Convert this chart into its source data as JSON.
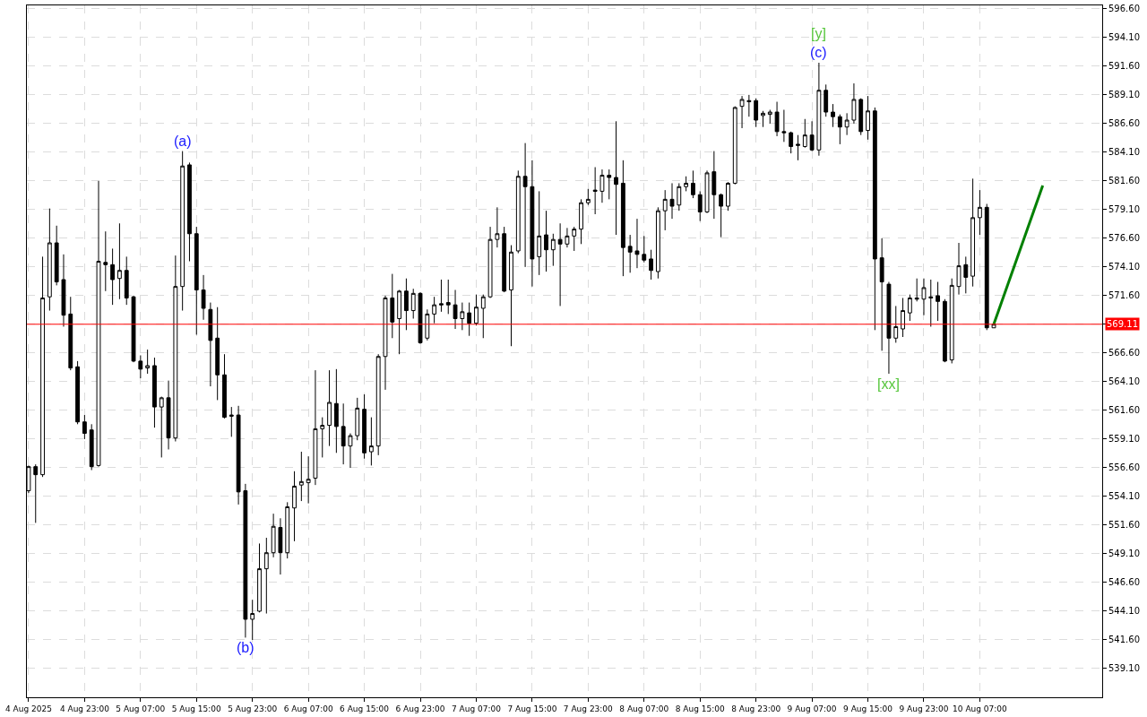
{
  "chart_data": {
    "type": "candlestick",
    "color": "#000000",
    "x": [
      "2025-08-04T15:00",
      "2025-08-04T16:00",
      "2025-08-04T17:00",
      "2025-08-04T18:00",
      "2025-08-04T19:00",
      "2025-08-04T20:00",
      "2025-08-04T21:00",
      "2025-08-04T22:00",
      "2025-08-04T23:00",
      "2025-08-05T00:00",
      "2025-08-05T01:00",
      "2025-08-05T02:00",
      "2025-08-05T03:00",
      "2025-08-05T04:00",
      "2025-08-05T05:00",
      "2025-08-05T06:00",
      "2025-08-05T07:00",
      "2025-08-05T08:00",
      "2025-08-05T09:00",
      "2025-08-05T10:00",
      "2025-08-05T11:00",
      "2025-08-05T12:00",
      "2025-08-05T13:00",
      "2025-08-05T14:00",
      "2025-08-05T15:00",
      "2025-08-05T16:00",
      "2025-08-05T17:00",
      "2025-08-05T18:00",
      "2025-08-05T19:00",
      "2025-08-05T20:00",
      "2025-08-05T21:00",
      "2025-08-05T22:00",
      "2025-08-05T23:00",
      "2025-08-06T00:00",
      "2025-08-06T01:00",
      "2025-08-06T02:00",
      "2025-08-06T03:00",
      "2025-08-06T04:00",
      "2025-08-06T05:00",
      "2025-08-06T06:00",
      "2025-08-06T07:00",
      "2025-08-06T08:00",
      "2025-08-06T09:00",
      "2025-08-06T10:00",
      "2025-08-06T11:00",
      "2025-08-06T12:00",
      "2025-08-06T13:00",
      "2025-08-06T14:00",
      "2025-08-06T15:00",
      "2025-08-06T16:00",
      "2025-08-06T17:00",
      "2025-08-06T18:00",
      "2025-08-06T19:00",
      "2025-08-06T20:00",
      "2025-08-06T21:00",
      "2025-08-06T22:00",
      "2025-08-06T23:00",
      "2025-08-07T00:00",
      "2025-08-07T01:00",
      "2025-08-07T02:00",
      "2025-08-07T03:00",
      "2025-08-07T04:00",
      "2025-08-07T05:00",
      "2025-08-07T06:00",
      "2025-08-07T07:00",
      "2025-08-07T08:00",
      "2025-08-07T09:00",
      "2025-08-07T10:00",
      "2025-08-07T11:00",
      "2025-08-07T12:00",
      "2025-08-07T13:00",
      "2025-08-07T14:00",
      "2025-08-07T15:00",
      "2025-08-07T16:00",
      "2025-08-07T17:00",
      "2025-08-07T18:00",
      "2025-08-07T19:00",
      "2025-08-07T20:00",
      "2025-08-07T21:00",
      "2025-08-07T22:00",
      "2025-08-07T23:00",
      "2025-08-08T00:00",
      "2025-08-08T01:00",
      "2025-08-08T02:00",
      "2025-08-08T03:00",
      "2025-08-08T04:00",
      "2025-08-08T05:00",
      "2025-08-08T06:00",
      "2025-08-08T07:00",
      "2025-08-08T08:00",
      "2025-08-08T09:00",
      "2025-08-08T10:00",
      "2025-08-08T11:00",
      "2025-08-08T12:00",
      "2025-08-08T13:00",
      "2025-08-08T14:00",
      "2025-08-08T15:00",
      "2025-08-08T16:00",
      "2025-08-08T17:00",
      "2025-08-08T18:00",
      "2025-08-08T19:00",
      "2025-08-08T20:00",
      "2025-08-08T21:00",
      "2025-08-08T22:00",
      "2025-08-08T23:00",
      "2025-08-09T00:00",
      "2025-08-09T01:00",
      "2025-08-09T02:00",
      "2025-08-09T03:00",
      "2025-08-09T04:00",
      "2025-08-09T05:00",
      "2025-08-09T06:00",
      "2025-08-09T07:00",
      "2025-08-09T08:00",
      "2025-08-09T09:00",
      "2025-08-09T10:00",
      "2025-08-09T11:00",
      "2025-08-09T12:00",
      "2025-08-09T13:00",
      "2025-08-09T14:00",
      "2025-08-09T15:00",
      "2025-08-09T16:00",
      "2025-08-09T17:00",
      "2025-08-09T18:00",
      "2025-08-09T19:00",
      "2025-08-09T20:00",
      "2025-08-09T21:00",
      "2025-08-09T22:00",
      "2025-08-09T23:00",
      "2025-08-10T00:00",
      "2025-08-10T01:00",
      "2025-08-10T02:00",
      "2025-08-10T03:00",
      "2025-08-10T04:00",
      "2025-08-10T05:00",
      "2025-08-10T06:00",
      "2025-08-10T07:00",
      "2025-08-10T08:00",
      "2025-08-10T09:00"
    ],
    "ohlc": [
      [
        554.6,
        556.8,
        554.4,
        556.7
      ],
      [
        556.7,
        556.9,
        551.8,
        556.0
      ],
      [
        556.0,
        575.0,
        555.8,
        571.4
      ],
      [
        571.5,
        579.2,
        570.3,
        576.2
      ],
      [
        576.2,
        577.7,
        572.5,
        572.8
      ],
      [
        573.0,
        575.2,
        568.9,
        569.9
      ],
      [
        570.0,
        571.5,
        565.1,
        565.3
      ],
      [
        565.4,
        565.9,
        560.4,
        560.6
      ],
      [
        560.6,
        561.2,
        559.1,
        559.6
      ],
      [
        559.9,
        560.4,
        556.4,
        556.7
      ],
      [
        556.8,
        581.6,
        556.7,
        574.6
      ],
      [
        574.5,
        577.2,
        572.0,
        574.3
      ],
      [
        574.3,
        575.7,
        570.8,
        573.0
      ],
      [
        573.1,
        577.9,
        571.3,
        573.8
      ],
      [
        573.8,
        575.0,
        570.8,
        571.4
      ],
      [
        571.5,
        571.6,
        565.8,
        565.9
      ],
      [
        565.9,
        566.4,
        564.4,
        565.2
      ],
      [
        565.3,
        566.9,
        564.8,
        565.5
      ],
      [
        565.5,
        566.2,
        560.1,
        561.9
      ],
      [
        561.9,
        562.8,
        557.5,
        562.7
      ],
      [
        562.7,
        564.2,
        558.2,
        559.2
      ],
      [
        559.2,
        575.1,
        558.9,
        572.4
      ],
      [
        572.4,
        584.2,
        570.3,
        582.9
      ],
      [
        583.0,
        583.2,
        574.6,
        577.0
      ],
      [
        577.0,
        577.6,
        568.2,
        572.1
      ],
      [
        572.1,
        573.4,
        569.5,
        570.5
      ],
      [
        570.4,
        571.0,
        563.7,
        567.7
      ],
      [
        567.9,
        570.6,
        562.5,
        564.7
      ],
      [
        564.7,
        566.5,
        560.9,
        561.0
      ],
      [
        561.2,
        561.9,
        559.3,
        561.1
      ],
      [
        561.2,
        562.0,
        553.4,
        554.5
      ],
      [
        554.6,
        555.2,
        541.8,
        543.4
      ],
      [
        543.4,
        545.1,
        541.6,
        543.9
      ],
      [
        544.1,
        550.0,
        544.0,
        547.8
      ],
      [
        547.8,
        550.5,
        543.9,
        549.2
      ],
      [
        549.2,
        552.6,
        548.8,
        551.5
      ],
      [
        551.4,
        552.2,
        547.3,
        549.2
      ],
      [
        549.2,
        553.6,
        548.7,
        553.2
      ],
      [
        553.1,
        556.3,
        550.2,
        555.0
      ],
      [
        555.1,
        558.0,
        553.7,
        555.4
      ],
      [
        555.3,
        557.6,
        553.5,
        555.6
      ],
      [
        555.7,
        565.1,
        555.1,
        560.0
      ],
      [
        560.0,
        561.0,
        557.5,
        560.3
      ],
      [
        560.3,
        565.1,
        558.5,
        562.3
      ],
      [
        562.2,
        565.2,
        557.9,
        560.2
      ],
      [
        560.2,
        562.2,
        556.9,
        558.5
      ],
      [
        558.5,
        559.6,
        556.6,
        559.4
      ],
      [
        559.4,
        562.7,
        559.0,
        561.8
      ],
      [
        561.7,
        563.0,
        557.4,
        557.9
      ],
      [
        558.0,
        561.0,
        556.8,
        558.5
      ],
      [
        558.5,
        566.5,
        557.7,
        566.3
      ],
      [
        566.3,
        571.6,
        563.4,
        571.4
      ],
      [
        571.4,
        573.5,
        567.9,
        569.3
      ],
      [
        569.6,
        572.1,
        566.5,
        572.0
      ],
      [
        572.0,
        573.1,
        568.6,
        570.3
      ],
      [
        570.3,
        572.2,
        569.6,
        571.8
      ],
      [
        571.8,
        571.9,
        567.4,
        567.5
      ],
      [
        567.9,
        570.4,
        567.7,
        570.0
      ],
      [
        570.0,
        571.5,
        569.2,
        570.8
      ],
      [
        570.9,
        573.0,
        570.2,
        570.8
      ],
      [
        571.0,
        573.0,
        570.0,
        570.8
      ],
      [
        570.8,
        572.1,
        568.7,
        569.6
      ],
      [
        569.6,
        571.0,
        568.6,
        570.2
      ],
      [
        570.1,
        571.0,
        568.1,
        569.2
      ],
      [
        569.2,
        571.7,
        569.0,
        570.6
      ],
      [
        570.5,
        571.7,
        567.9,
        571.5
      ],
      [
        571.5,
        577.6,
        571.4,
        576.5
      ],
      [
        576.5,
        579.3,
        575.8,
        577.0
      ],
      [
        577.0,
        577.6,
        571.9,
        572.0
      ],
      [
        572.1,
        576.0,
        567.2,
        575.4
      ],
      [
        575.5,
        582.5,
        575.3,
        582.0
      ],
      [
        582.0,
        584.9,
        574.1,
        581.1
      ],
      [
        581.1,
        583.4,
        572.4,
        574.8
      ],
      [
        575.0,
        580.7,
        573.4,
        576.8
      ],
      [
        576.9,
        579.0,
        573.7,
        575.6
      ],
      [
        575.6,
        577.0,
        574.2,
        576.5
      ],
      [
        576.5,
        577.9,
        570.7,
        576.1
      ],
      [
        576.1,
        577.5,
        575.8,
        576.8
      ],
      [
        576.8,
        577.6,
        575.5,
        577.4
      ],
      [
        577.4,
        580.0,
        576.1,
        579.7
      ],
      [
        579.7,
        580.9,
        579.5,
        580.0
      ],
      [
        580.8,
        582.8,
        578.7,
        580.7
      ],
      [
        580.7,
        582.6,
        579.7,
        582.1
      ],
      [
        582.1,
        582.6,
        580.0,
        581.9
      ],
      [
        581.9,
        586.8,
        576.9,
        581.3
      ],
      [
        581.4,
        583.4,
        573.3,
        575.8
      ],
      [
        575.9,
        576.9,
        573.6,
        575.4
      ],
      [
        575.5,
        578.3,
        574.0,
        575.2
      ],
      [
        575.2,
        576.8,
        574.5,
        574.7
      ],
      [
        574.8,
        575.6,
        573.0,
        573.8
      ],
      [
        573.7,
        579.3,
        573.1,
        579.0
      ],
      [
        579.0,
        580.8,
        577.3,
        580.0
      ],
      [
        580.0,
        581.4,
        578.3,
        579.4
      ],
      [
        579.5,
        581.4,
        579.0,
        581.1
      ],
      [
        581.1,
        582.0,
        580.7,
        581.4
      ],
      [
        581.4,
        582.5,
        580.1,
        580.4
      ],
      [
        580.4,
        580.7,
        578.1,
        578.9
      ],
      [
        578.9,
        582.5,
        578.8,
        582.3
      ],
      [
        582.4,
        584.2,
        578.3,
        580.4
      ],
      [
        580.4,
        580.5,
        576.7,
        579.4
      ],
      [
        579.4,
        581.5,
        579.0,
        581.4
      ],
      [
        581.4,
        588.1,
        581.3,
        588.0
      ],
      [
        588.1,
        589.0,
        586.2,
        588.7
      ],
      [
        588.6,
        589.1,
        587.2,
        588.5
      ],
      [
        588.6,
        588.8,
        586.3,
        586.9
      ],
      [
        587.3,
        587.7,
        586.3,
        587.5
      ],
      [
        587.4,
        587.8,
        586.6,
        587.6
      ],
      [
        587.6,
        588.5,
        585.5,
        585.9
      ],
      [
        585.9,
        587.8,
        585.0,
        585.8
      ],
      [
        585.8,
        585.9,
        584.0,
        584.6
      ],
      [
        584.8,
        585.6,
        583.4,
        584.7
      ],
      [
        584.6,
        587.0,
        584.5,
        585.6
      ],
      [
        585.6,
        586.8,
        584.2,
        584.3
      ],
      [
        584.3,
        591.9,
        583.8,
        589.5
      ],
      [
        589.5,
        590.0,
        587.2,
        587.6
      ],
      [
        587.6,
        588.3,
        586.3,
        587.2
      ],
      [
        587.2,
        587.4,
        584.8,
        586.3
      ],
      [
        586.3,
        587.5,
        585.6,
        586.9
      ],
      [
        586.9,
        590.1,
        586.6,
        588.7
      ],
      [
        588.7,
        588.8,
        585.6,
        585.9
      ],
      [
        586.0,
        589.0,
        585.2,
        587.7
      ],
      [
        587.7,
        588.0,
        568.6,
        574.8
      ],
      [
        574.9,
        576.6,
        566.8,
        572.8
      ],
      [
        572.6,
        572.8,
        564.8,
        567.9
      ],
      [
        567.9,
        570.7,
        567.5,
        568.9
      ],
      [
        568.7,
        571.4,
        568.0,
        570.3
      ],
      [
        570.1,
        571.7,
        569.4,
        571.4
      ],
      [
        571.4,
        573.1,
        571.1,
        571.3
      ],
      [
        571.3,
        573.1,
        569.9,
        572.3
      ],
      [
        571.5,
        573.0,
        568.9,
        571.4
      ],
      [
        571.6,
        572.8,
        569.4,
        571.1
      ],
      [
        571.1,
        571.3,
        565.8,
        565.9
      ],
      [
        566.0,
        573.1,
        565.7,
        572.5
      ],
      [
        572.4,
        576.2,
        571.7,
        574.2
      ],
      [
        574.3,
        575.0,
        571.8,
        573.2
      ],
      [
        573.3,
        581.8,
        572.4,
        578.4
      ],
      [
        578.4,
        580.8,
        576.9,
        579.3
      ],
      [
        579.3,
        579.6,
        568.6,
        568.8
      ],
      [
        568.8,
        569.11,
        568.8,
        569.11
      ]
    ],
    "series": [
      {
        "type": "line",
        "x": [
          "2025-08-10T09:00",
          "2025-08-10T16:00"
        ],
        "values": [
          569.11,
          581.2
        ],
        "color": "#008000"
      }
    ],
    "xlim": [
      "2025-08-04T14:45",
      "2025-08-11T00:30"
    ],
    "xticks": [
      {
        "value": "2025-08-04T15:00",
        "label": "4 Aug 2025"
      },
      {
        "value": "2025-08-04T23:00",
        "label": "4 Aug 23:00"
      },
      {
        "value": "2025-08-05T07:00",
        "label": "5 Aug 07:00"
      },
      {
        "value": "2025-08-05T15:00",
        "label": "5 Aug 15:00"
      },
      {
        "value": "2025-08-05T23:00",
        "label": "5 Aug 23:00"
      },
      {
        "value": "2025-08-06T07:00",
        "label": "6 Aug 07:00"
      },
      {
        "value": "2025-08-06T15:00",
        "label": "6 Aug 15:00"
      },
      {
        "value": "2025-08-06T23:00",
        "label": "6 Aug 23:00"
      },
      {
        "value": "2025-08-07T07:00",
        "label": "7 Aug 07:00"
      },
      {
        "value": "2025-08-07T15:00",
        "label": "7 Aug 15:00"
      },
      {
        "value": "2025-08-07T23:00",
        "label": "7 Aug 23:00"
      },
      {
        "value": "2025-08-08T07:00",
        "label": "8 Aug 07:00"
      },
      {
        "value": "2025-08-08T15:00",
        "label": "8 Aug 15:00"
      },
      {
        "value": "2025-08-08T23:00",
        "label": "8 Aug 23:00"
      },
      {
        "value": "2025-08-09T07:00",
        "label": "9 Aug 07:00"
      },
      {
        "value": "2025-08-09T15:00",
        "label": "9 Aug 15:00"
      },
      {
        "value": "2025-08-09T23:00",
        "label": "9 Aug 23:00"
      },
      {
        "value": "2025-08-10T07:00",
        "label": "10 Aug 07:00"
      }
    ],
    "ylim": [
      536.6,
      596.9
    ],
    "yticks": [
      {
        "value": 539.1,
        "label": "539.10"
      },
      {
        "value": 541.6,
        "label": "541.60"
      },
      {
        "value": 544.1,
        "label": "544.10"
      },
      {
        "value": 546.6,
        "label": "546.60"
      },
      {
        "value": 549.1,
        "label": "549.10"
      },
      {
        "value": 551.6,
        "label": "551.60"
      },
      {
        "value": 554.1,
        "label": "554.10"
      },
      {
        "value": 556.6,
        "label": "556.60"
      },
      {
        "value": 559.1,
        "label": "559.10"
      },
      {
        "value": 561.6,
        "label": "561.60"
      },
      {
        "value": 564.1,
        "label": "564.10"
      },
      {
        "value": 566.6,
        "label": "566.60"
      },
      {
        "value": 569.1,
        "label": null
      },
      {
        "value": 571.6,
        "label": "571.60"
      },
      {
        "value": 574.1,
        "label": "574.10"
      },
      {
        "value": 576.6,
        "label": "576.60"
      },
      {
        "value": 579.1,
        "label": "579.10"
      },
      {
        "value": 581.6,
        "label": "581.60"
      },
      {
        "value": 584.1,
        "label": "584.10"
      },
      {
        "value": 586.6,
        "label": "586.60"
      },
      {
        "value": 589.1,
        "label": "589.10"
      },
      {
        "value": 591.6,
        "label": "591.60"
      },
      {
        "value": 594.1,
        "label": "594.10"
      },
      {
        "value": 596.6,
        "label": "596.60"
      }
    ],
    "grid": true,
    "ref_lines": [
      {
        "axis": "y",
        "value": 569.11,
        "label": "569.11",
        "color": "#ff0000"
      }
    ],
    "annotations": [
      {
        "text": "(a)",
        "x": "2025-08-05T13:00",
        "y": 584.2
      },
      {
        "text": "(b)",
        "x": "2025-08-05T22:00",
        "y": 541.8
      },
      {
        "text": "(c)",
        "x": "2025-08-09T08:00",
        "y": 591.9
      },
      {
        "text": "[y]",
        "x": "2025-08-09T08:00",
        "y": 591.9
      },
      {
        "text": "[xx]",
        "x": "2025-08-09T18:00",
        "y": 564.8
      }
    ]
  }
}
